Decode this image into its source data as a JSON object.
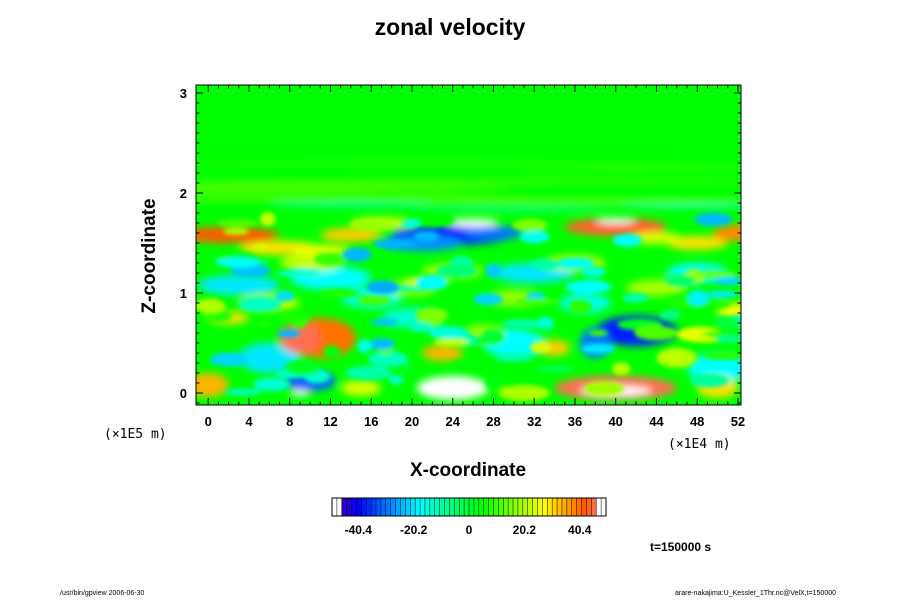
{
  "chart_data": {
    "type": "heatmap",
    "title": "zonal velocity",
    "xlabel": "X-coordinate",
    "ylabel": "Z-coordinate",
    "x_multiplier": "(×1E4 m)",
    "z_multiplier": "(×1E5 m)",
    "x_ticks": [
      0,
      4,
      8,
      12,
      16,
      20,
      24,
      28,
      32,
      36,
      40,
      44,
      48,
      52
    ],
    "z_ticks": [
      0,
      1,
      2,
      3
    ],
    "xlim": [
      -1.2,
      52.3
    ],
    "zlim": [
      -0.12,
      3.08
    ],
    "colorbar": {
      "min": -50,
      "max": 50,
      "tick_values": [
        -40.4,
        -20.2,
        0,
        20.2,
        40.4
      ],
      "tick_labels": [
        "-40.4",
        "-20.2",
        "0",
        "20.2",
        "40.4"
      ]
    },
    "features": [
      {
        "x": 26,
        "z": 1.7,
        "value": -50
      },
      {
        "x": 24,
        "z": 1.55,
        "value": -38
      },
      {
        "x": 40,
        "z": 1.72,
        "value": 48
      },
      {
        "x": 3,
        "z": 1.58,
        "value": 38
      },
      {
        "x": 10,
        "z": 0.55,
        "value": 38
      },
      {
        "x": 24,
        "z": 0.05,
        "value": -50
      },
      {
        "x": 40,
        "z": 0.05,
        "value": 50
      },
      {
        "x": 42,
        "z": 0.6,
        "value": -38
      },
      {
        "x": 10,
        "z": 0.1,
        "value": -30
      },
      {
        "x": 52,
        "z": 1.6,
        "value": 38
      }
    ]
  },
  "time_label": "t=150000 s",
  "footer_left": "/usr/bin/gpview 2006-06-30",
  "footer_right": "arare-nakajima:U_Kessler_1Thr.nc@VelX,t=150000",
  "colors": {
    "background_field": "#00ff00"
  }
}
